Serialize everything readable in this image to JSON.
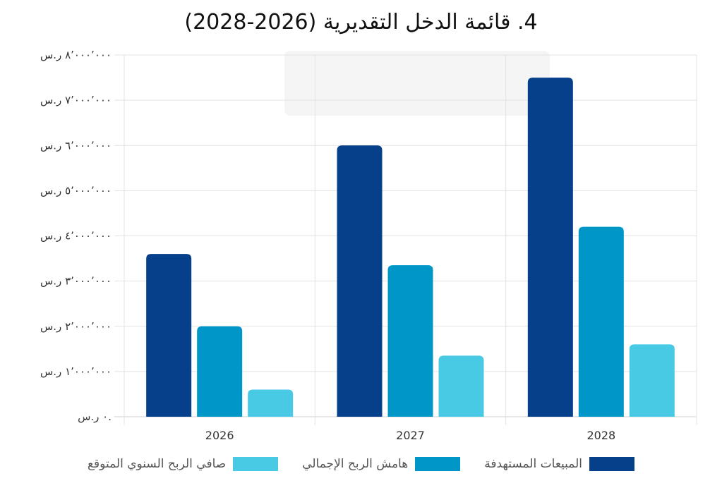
{
  "chart_data": {
    "type": "bar",
    "title": "4. قائمة الدخل التقديرية (2026-2028)",
    "categories": [
      "2026",
      "2027",
      "2028"
    ],
    "series": [
      {
        "name": "المبيعات المستهدفة",
        "color": "#063f8a",
        "values": [
          3600000,
          6000000,
          7500000
        ]
      },
      {
        "name": "هامش الربح الإجمالي",
        "color": "#0096c8",
        "values": [
          2000000,
          3350000,
          4200000
        ]
      },
      {
        "name": "صافي الربح السنوي المتوقع",
        "color": "#48cae4",
        "values": [
          600000,
          1350000,
          1600000
        ]
      }
    ],
    "ylim": [
      0,
      8000000
    ],
    "yticks": [
      {
        "value": 8000000,
        "label": "٨٬٠٠٠٬٠٠٠ ر.س"
      },
      {
        "value": 7000000,
        "label": "٧٬٠٠٠٬٠٠٠ ر.س"
      },
      {
        "value": 6000000,
        "label": "٦٬٠٠٠٬٠٠٠ ر.س"
      },
      {
        "value": 5000000,
        "label": "٥٬٠٠٠٬٠٠٠ ر.س"
      },
      {
        "value": 4000000,
        "label": "٤٬٠٠٠٬٠٠٠ ر.س"
      },
      {
        "value": 3000000,
        "label": "٣٬٠٠٠٬٠٠٠ ر.س"
      },
      {
        "value": 2000000,
        "label": "٢٬٠٠٠٬٠٠٠ ر.س"
      },
      {
        "value": 1000000,
        "label": "١٬٠٠٠٬٠٠٠ ر.س"
      },
      {
        "value": 0,
        "label": "٠ ر.س."
      }
    ],
    "grid": true,
    "legend_position": "bottom"
  }
}
